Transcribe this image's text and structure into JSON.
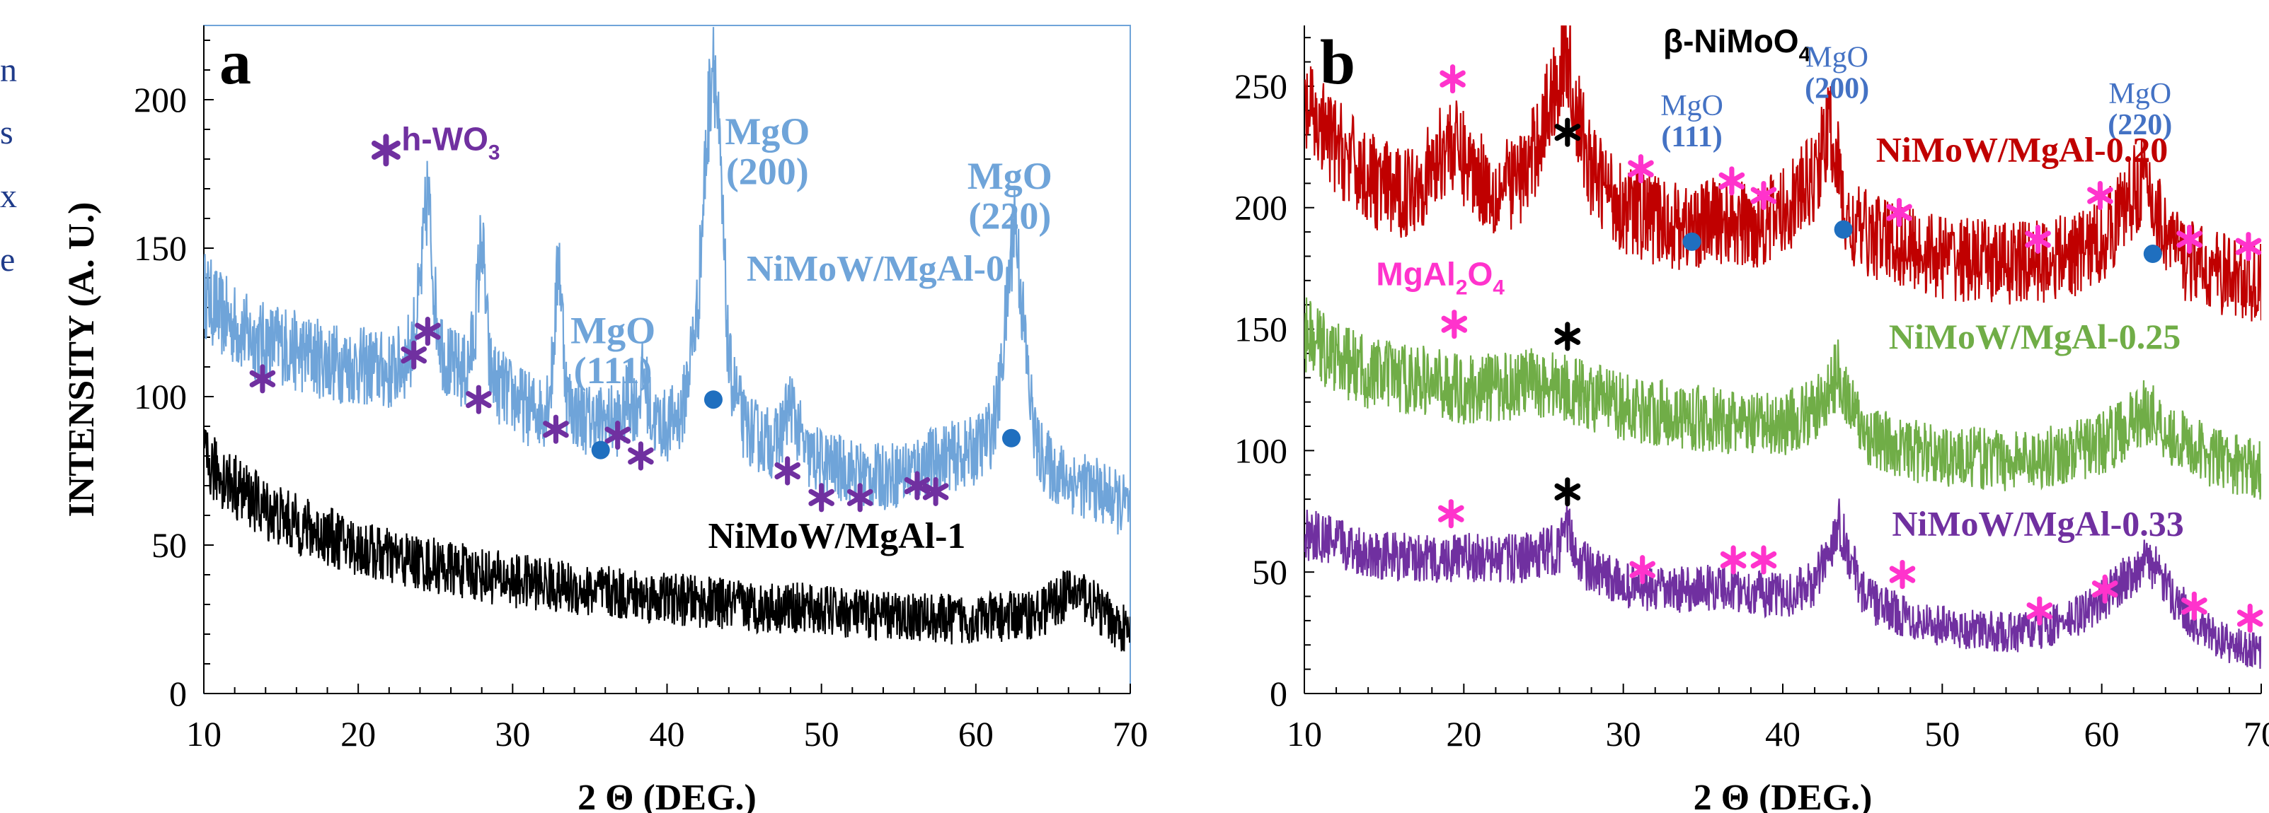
{
  "chart_data": [
    {
      "type": "line",
      "panel_label": "a",
      "xlabel": "2 Θ (DEG.)",
      "ylabel": "INTENSITY (A. U.)",
      "xlim": [
        10,
        70
      ],
      "ylim": [
        0,
        225
      ],
      "x_ticks": [
        10,
        20,
        30,
        40,
        50,
        60,
        70
      ],
      "y_ticks": [
        0,
        50,
        100,
        150,
        200
      ],
      "grid": false,
      "series": [
        {
          "name": "NiMoW/MgAl-0",
          "color": "#6fa4d9",
          "x": [
            10,
            11,
            12,
            13,
            14,
            15,
            16,
            17,
            18,
            19,
            20,
            21,
            22,
            23,
            23.5,
            24,
            24.5,
            25,
            25.5,
            26,
            27,
            27.5,
            28,
            28.5,
            29,
            30,
            31,
            32,
            32.5,
            33,
            33.5,
            34,
            35,
            36,
            37,
            37.5,
            38,
            38.5,
            39,
            40,
            41,
            42,
            42.5,
            43,
            43.5,
            44,
            45,
            46,
            47,
            47.5,
            48,
            49,
            50,
            51,
            52,
            53,
            54,
            55,
            56,
            57,
            58,
            59,
            60,
            61,
            61.5,
            62,
            62.5,
            63,
            63.5,
            64,
            65,
            66,
            67,
            68,
            69,
            70
          ],
          "values": [
            135,
            128,
            124,
            120,
            118,
            118,
            115,
            114,
            112,
            111,
            110,
            110,
            108,
            112,
            118,
            135,
            170,
            130,
            115,
            110,
            108,
            120,
            155,
            110,
            104,
            100,
            96,
            95,
            105,
            148,
            100,
            95,
            92,
            92,
            92,
            100,
            96,
            108,
            92,
            90,
            95,
            130,
            180,
            220,
            170,
            110,
            90,
            86,
            84,
            90,
            98,
            80,
            78,
            76,
            75,
            73,
            73,
            74,
            76,
            78,
            80,
            80,
            82,
            88,
            100,
            130,
            162,
            130,
            100,
            82,
            75,
            72,
            70,
            68,
            65,
            62
          ]
        },
        {
          "name": "NiMoW/MgAl-1",
          "color": "#000000",
          "x": [
            10,
            12,
            14,
            16,
            18,
            20,
            22,
            24,
            26,
            28,
            30,
            32,
            34,
            36,
            38,
            40,
            42,
            44,
            46,
            48,
            50,
            52,
            54,
            56,
            58,
            60,
            62,
            64,
            65,
            66,
            67,
            68,
            69,
            70
          ],
          "values": [
            78,
            70,
            62,
            57,
            53,
            49,
            46,
            44,
            42,
            40,
            38,
            37,
            35,
            34,
            33,
            32,
            31,
            30,
            29,
            29,
            28,
            27,
            26,
            26,
            25,
            25,
            26,
            27,
            30,
            34,
            33,
            28,
            24,
            20
          ]
        }
      ],
      "annotations": [
        {
          "text": "h-WO",
          "sub": "3",
          "x": 22.8,
          "y": 183,
          "color": "#7030a0"
        },
        {
          "text": "MgO",
          "line2": "(111)",
          "x": 36.5,
          "y": 118,
          "color": "#6fa4d9"
        },
        {
          "text": "MgO",
          "line2": "(200)",
          "x": 46.5,
          "y": 185,
          "color": "#6fa4d9"
        },
        {
          "text": "MgO",
          "line2": "(220)",
          "x": 62.2,
          "y": 170,
          "color": "#6fa4d9"
        },
        {
          "text": "NiMoW/MgAl-0",
          "x": 53.5,
          "y": 139,
          "color": "#6fa4d9"
        },
        {
          "text": "NiMoW/MgAl-1",
          "x": 51,
          "y": 49,
          "color": "#000000"
        }
      ],
      "legend_markers": [
        {
          "shape": "asterisk",
          "x": 21.8,
          "y": 183,
          "color": "#7030a0"
        }
      ],
      "asterisks": {
        "color": "#7030a0",
        "points": [
          [
            13.8,
            106
          ],
          [
            23.6,
            114
          ],
          [
            24.5,
            122
          ],
          [
            27.8,
            99
          ],
          [
            32.8,
            89
          ],
          [
            36.8,
            87
          ],
          [
            38.3,
            80
          ],
          [
            47.8,
            75
          ],
          [
            50,
            66
          ],
          [
            52.5,
            66
          ],
          [
            56.2,
            70
          ],
          [
            57.4,
            68
          ]
        ]
      },
      "dots": {
        "color": "#1f6fbf",
        "points": [
          [
            35.7,
            82
          ],
          [
            43,
            99
          ],
          [
            62.3,
            86
          ]
        ]
      }
    },
    {
      "type": "line",
      "panel_label": "b",
      "xlabel": "2 Θ (DEG.)",
      "ylabel": "",
      "xlim": [
        10,
        70
      ],
      "ylim": [
        0,
        275
      ],
      "x_ticks": [
        10,
        20,
        30,
        40,
        50,
        60,
        70
      ],
      "y_ticks": [
        0,
        50,
        100,
        150,
        200,
        250
      ],
      "grid": false,
      "series": [
        {
          "name": "NiMoW/MgAl-0.20",
          "color": "#c00000",
          "x": [
            10,
            12,
            14,
            16,
            18,
            19,
            20,
            22,
            24,
            25,
            26,
            26.5,
            27,
            28,
            30,
            32,
            34,
            36,
            38,
            40,
            42,
            42.5,
            43,
            43.5,
            44,
            46,
            48,
            50,
            52,
            54,
            56,
            58,
            60,
            61,
            62,
            62.5,
            63,
            64,
            65,
            66,
            68,
            70
          ],
          "values": [
            240,
            225,
            212,
            205,
            215,
            228,
            220,
            206,
            215,
            235,
            255,
            265,
            240,
            215,
            200,
            195,
            192,
            195,
            192,
            198,
            212,
            225,
            232,
            215,
            192,
            188,
            183,
            180,
            178,
            177,
            178,
            180,
            186,
            196,
            206,
            212,
            205,
            190,
            180,
            176,
            172,
            168
          ]
        },
        {
          "name": "NiMoW/MgAl-0.25",
          "color": "#70ad47",
          "x": [
            10,
            12,
            14,
            16,
            18,
            20,
            22,
            24,
            26,
            28,
            30,
            32,
            34,
            36,
            38,
            40,
            42,
            43,
            43.5,
            44,
            45,
            46,
            48,
            50,
            52,
            54,
            56,
            58,
            60,
            61,
            62,
            63,
            64,
            66,
            68,
            70
          ],
          "values": [
            148,
            138,
            132,
            130,
            128,
            125,
            126,
            128,
            127,
            122,
            118,
            116,
            114,
            112,
            110,
            111,
            116,
            125,
            134,
            122,
            108,
            104,
            100,
            98,
            97,
            96,
            97,
            99,
            103,
            107,
            112,
            117,
            108,
            100,
            95,
            92
          ]
        },
        {
          "name": "NiMoW/MgAl-0.33",
          "color": "#7030a0",
          "x": [
            10,
            12,
            14,
            16,
            18,
            20,
            22,
            24,
            26,
            26.5,
            27,
            28,
            30,
            32,
            34,
            36,
            38,
            40,
            42,
            43,
            43.5,
            44,
            45,
            46,
            48,
            50,
            52,
            54,
            56,
            58,
            60,
            61,
            62,
            63,
            64,
            66,
            68,
            70
          ],
          "values": [
            66,
            62,
            58,
            56,
            55,
            56,
            55,
            56,
            60,
            68,
            58,
            50,
            45,
            42,
            43,
            44,
            42,
            40,
            45,
            60,
            72,
            60,
            42,
            36,
            31,
            28,
            26,
            25,
            26,
            30,
            38,
            45,
            50,
            55,
            44,
            28,
            20,
            17
          ]
        }
      ],
      "annotations": [
        {
          "text": "β-NiMoO",
          "sub": "4",
          "x": 32.5,
          "y": 264,
          "color": "#000000"
        },
        {
          "text": "MgO",
          "line2": "(111)",
          "x": 34.3,
          "y": 238,
          "color": "#4472c4"
        },
        {
          "text": "MgO",
          "line2": "(200)",
          "x": 43.4,
          "y": 258,
          "color": "#4472c4"
        },
        {
          "text": "MgO",
          "line2": "(220)",
          "x": 62.4,
          "y": 243,
          "color": "#4472c4"
        },
        {
          "text": "NiMoW/MgAl-0.20",
          "x": 55,
          "y": 219,
          "color": "#c00000"
        },
        {
          "text": "MgAl",
          "sub": "2",
          "tail": "O",
          "sub2": "4",
          "x": 14.5,
          "y": 168,
          "color": "#ff33cc"
        },
        {
          "text": "NiMoW/MgAl-0.25",
          "x": 55.8,
          "y": 142,
          "color": "#70ad47"
        },
        {
          "text": "NiMoW/MgAl-0.33",
          "x": 56,
          "y": 65,
          "color": "#7030a0"
        }
      ],
      "asterisks_pink": {
        "color": "#ff33cc",
        "points": [
          [
            19.3,
            253
          ],
          [
            31.1,
            216
          ],
          [
            36.8,
            211
          ],
          [
            38.8,
            205
          ],
          [
            47.3,
            198
          ],
          [
            56,
            187
          ],
          [
            59.9,
            205
          ],
          [
            65.5,
            187
          ],
          [
            69.2,
            184
          ],
          [
            19.4,
            152
          ],
          [
            19.2,
            74
          ],
          [
            31.2,
            51
          ],
          [
            36.9,
            55
          ],
          [
            38.8,
            55
          ],
          [
            47.5,
            49
          ],
          [
            56.1,
            34
          ],
          [
            60.2,
            43
          ],
          [
            65.8,
            36
          ],
          [
            69.3,
            31
          ]
        ]
      },
      "asterisks_black": {
        "color": "#000000",
        "points": [
          [
            26.5,
            231
          ],
          [
            26.5,
            147
          ],
          [
            26.5,
            83
          ]
        ]
      },
      "dots": {
        "color": "#1f6fbf",
        "points": [
          [
            34.3,
            186
          ],
          [
            43.8,
            191
          ],
          [
            63.2,
            181
          ]
        ]
      }
    }
  ],
  "edge_text": [
    "n",
    "s",
    "x",
    "e"
  ]
}
